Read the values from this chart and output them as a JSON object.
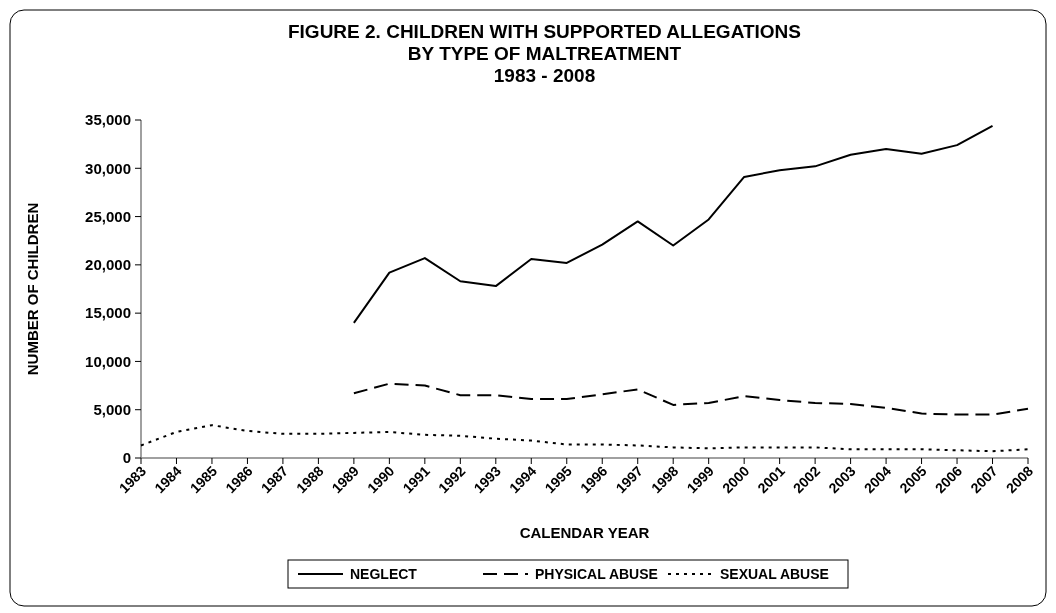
{
  "chart_data": {
    "type": "line",
    "title": "FIGURE 2. CHILDREN WITH SUPPORTED ALLEGATIONS\nBY TYPE OF MALTREATMENT\n1983 - 2008",
    "xlabel": "CALENDAR YEAR",
    "ylabel": "NUMBER OF CHILDREN",
    "categories": [
      "1983",
      "1984",
      "1985",
      "1986",
      "1987",
      "1988",
      "1989",
      "1990",
      "1991",
      "1992",
      "1993",
      "1994",
      "1995",
      "1996",
      "1997",
      "1998",
      "1999",
      "2000",
      "2001",
      "2002",
      "2003",
      "2004",
      "2005",
      "2006",
      "2007",
      "2008"
    ],
    "ylim": [
      0,
      35000
    ],
    "yticks": [
      0,
      {
        "value": 5000,
        "label": "5,000"
      },
      {
        "value": 10000,
        "label": "10,000"
      },
      {
        "value": 15000,
        "label": "15,000"
      },
      {
        "value": 20000,
        "label": "20,000"
      },
      {
        "value": 25000,
        "label": "25,000"
      },
      {
        "value": 30000,
        "label": "30,000"
      },
      {
        "value": 35000,
        "label": "35,000"
      }
    ],
    "series": [
      {
        "name": "NEGLECT",
        "color": "#000000",
        "line_style": "solid",
        "values": [
          null,
          null,
          null,
          null,
          null,
          null,
          14000,
          19200,
          20700,
          18300,
          17800,
          20600,
          20200,
          22100,
          24500,
          22000,
          24700,
          29100,
          29800,
          30200,
          31400,
          32000,
          31500,
          32400,
          34400,
          null
        ]
      },
      {
        "name": "PHYSICAL ABUSE",
        "color": "#000000",
        "line_style": "dashed",
        "values": [
          null,
          null,
          null,
          null,
          null,
          null,
          6700,
          7700,
          7500,
          6500,
          6500,
          6100,
          6100,
          6600,
          7100,
          5500,
          5700,
          6400,
          6000,
          5700,
          5600,
          5200,
          4600,
          4500,
          4500,
          5100
        ]
      },
      {
        "name": "SEXUAL ABUSE",
        "color": "#000000",
        "line_style": "dotted",
        "values": [
          1300,
          2700,
          3400,
          2800,
          2500,
          2500,
          2600,
          2700,
          2400,
          2300,
          2000,
          1800,
          1400,
          1400,
          1300,
          1100,
          1000,
          1100,
          1100,
          1100,
          900,
          900,
          900,
          800,
          700,
          900
        ]
      }
    ],
    "grid": false,
    "legend": "bottom"
  }
}
